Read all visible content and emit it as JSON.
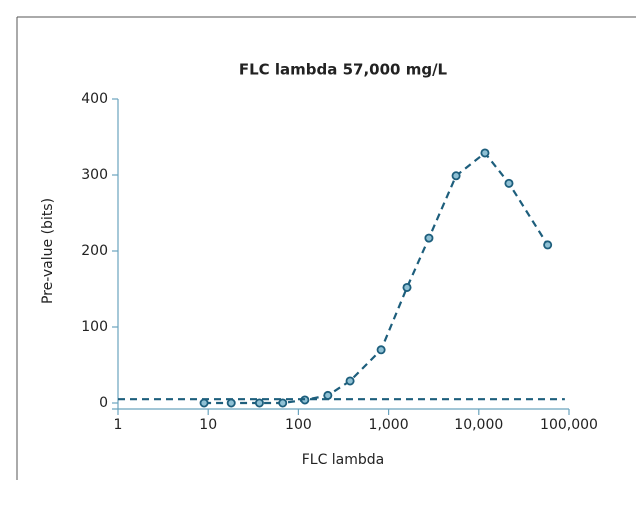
{
  "chart_data": {
    "type": "line",
    "title": "FLC lambda 57,000 mg/L",
    "xlabel": "FLC lambda",
    "ylabel": "Pre-value (bits)",
    "xscale": "log",
    "xlim": [
      1,
      100000
    ],
    "xticks": [
      1,
      10,
      100,
      {
        "value": 1000,
        "label": "1,000"
      },
      {
        "value": 10000,
        "label": "10,000"
      },
      {
        "value": 100000,
        "label": "100,000"
      }
    ],
    "ylim": [
      0,
      400
    ],
    "yticks": [
      0,
      100,
      200,
      300,
      400
    ],
    "series": [
      {
        "color": "#1d5e7c",
        "markers": true,
        "x": [
          9,
          18,
          37,
          67,
          118,
          212,
          374,
          826,
          1600,
          2800,
          5600,
          11700,
          21600,
          58000
        ],
        "values": [
          0,
          0,
          0,
          0,
          4,
          10,
          29,
          70,
          152,
          217,
          299,
          329,
          289,
          208
        ]
      },
      {
        "color": "#1d5e7c",
        "markers": false,
        "x": [
          1,
          90000
        ],
        "values": [
          5,
          5
        ]
      }
    ]
  }
}
